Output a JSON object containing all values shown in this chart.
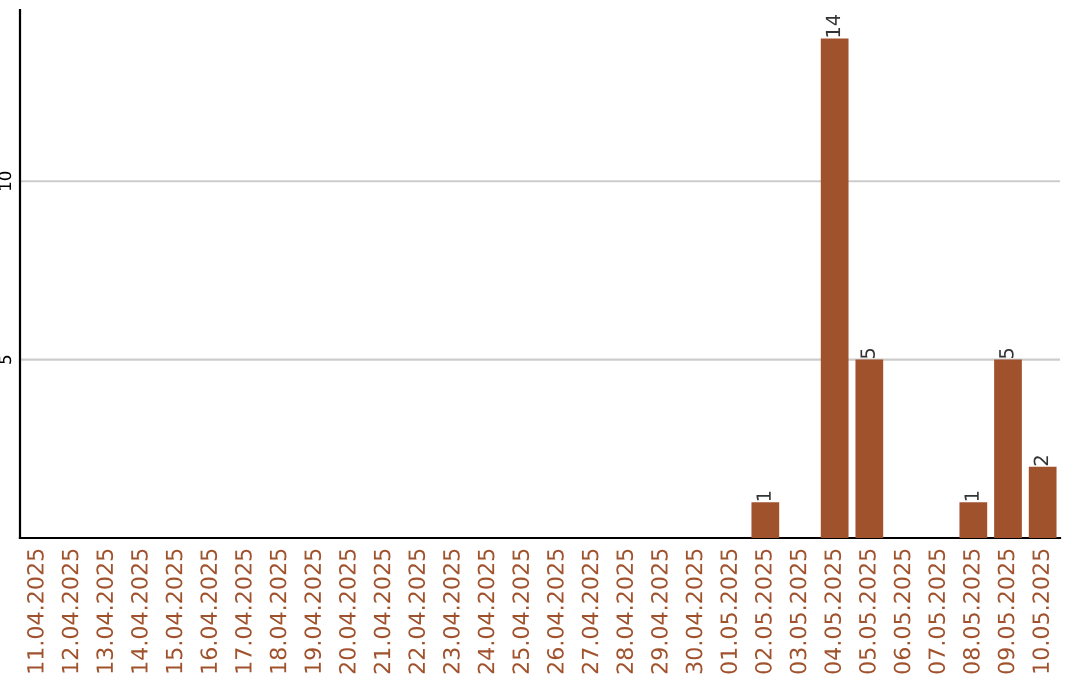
{
  "chart_data": {
    "type": "bar",
    "categories": [
      "11.04.2025",
      "12.04.2025",
      "13.04.2025",
      "14.04.2025",
      "15.04.2025",
      "16.04.2025",
      "17.04.2025",
      "18.04.2025",
      "19.04.2025",
      "20.04.2025",
      "21.04.2025",
      "22.04.2025",
      "23.04.2025",
      "24.04.2025",
      "25.04.2025",
      "26.04.2025",
      "27.04.2025",
      "28.04.2025",
      "29.04.2025",
      "30.04.2025",
      "01.05.2025",
      "02.05.2025",
      "03.05.2025",
      "04.05.2025",
      "05.05.2025",
      "06.05.2025",
      "07.05.2025",
      "08.05.2025",
      "09.05.2025",
      "10.05.2025"
    ],
    "values": [
      0,
      0,
      0,
      0,
      0,
      0,
      0,
      0,
      0,
      0,
      0,
      0,
      0,
      0,
      0,
      0,
      0,
      0,
      0,
      0,
      0,
      1,
      0,
      14,
      5,
      0,
      0,
      1,
      5,
      2
    ],
    "value_labels": [
      null,
      null,
      null,
      null,
      null,
      null,
      null,
      null,
      null,
      null,
      null,
      null,
      null,
      null,
      null,
      null,
      null,
      null,
      null,
      null,
      null,
      "1",
      null,
      "14",
      "5",
      null,
      null,
      "1",
      "5",
      "2"
    ],
    "color": "#a0522d",
    "ylim": [
      0,
      14.8
    ],
    "yticks": [
      5,
      10
    ],
    "grid": "y"
  }
}
